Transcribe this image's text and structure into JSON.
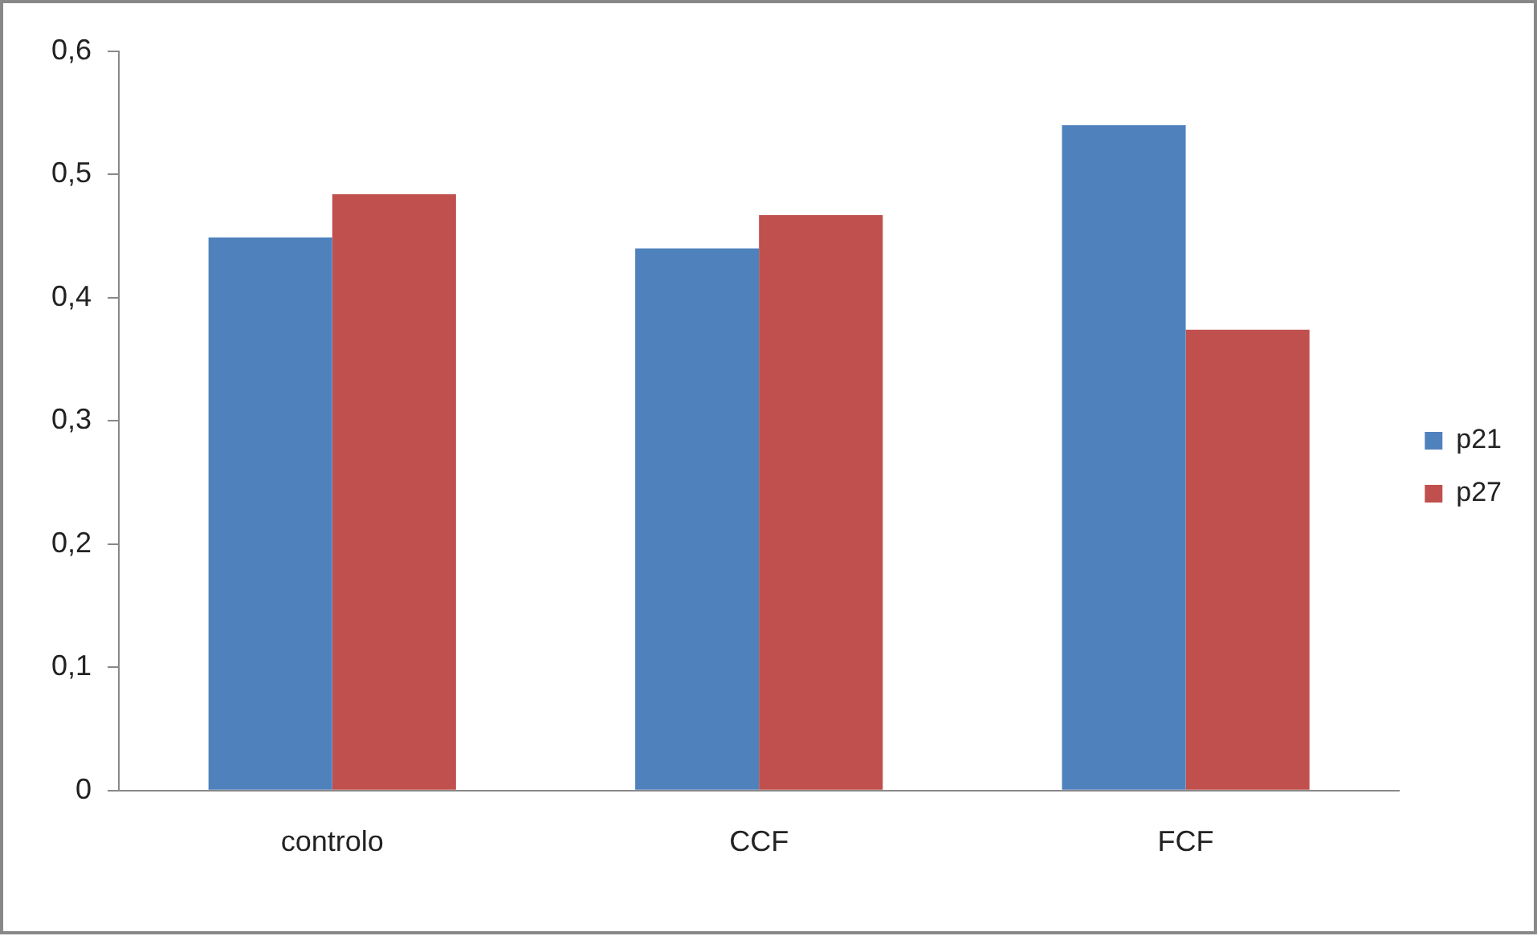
{
  "chart_data": {
    "type": "bar",
    "categories": [
      "controlo",
      "CCF",
      "FCF"
    ],
    "series": [
      {
        "name": "p21",
        "color": "#4f81bd",
        "values": [
          0.449,
          0.44,
          0.54
        ]
      },
      {
        "name": "p27",
        "color": "#c0504d",
        "values": [
          0.484,
          0.467,
          0.374
        ]
      }
    ],
    "ylim": [
      0,
      0.6
    ],
    "yticks": [
      {
        "value": 0,
        "label": "0"
      },
      {
        "value": 0.1,
        "label": "0,1"
      },
      {
        "value": 0.2,
        "label": "0,2"
      },
      {
        "value": 0.3,
        "label": "0,3"
      },
      {
        "value": 0.4,
        "label": "0,4"
      },
      {
        "value": 0.5,
        "label": "0,5"
      },
      {
        "value": 0.6,
        "label": "0,6"
      }
    ],
    "grid": false,
    "legend": "right"
  }
}
